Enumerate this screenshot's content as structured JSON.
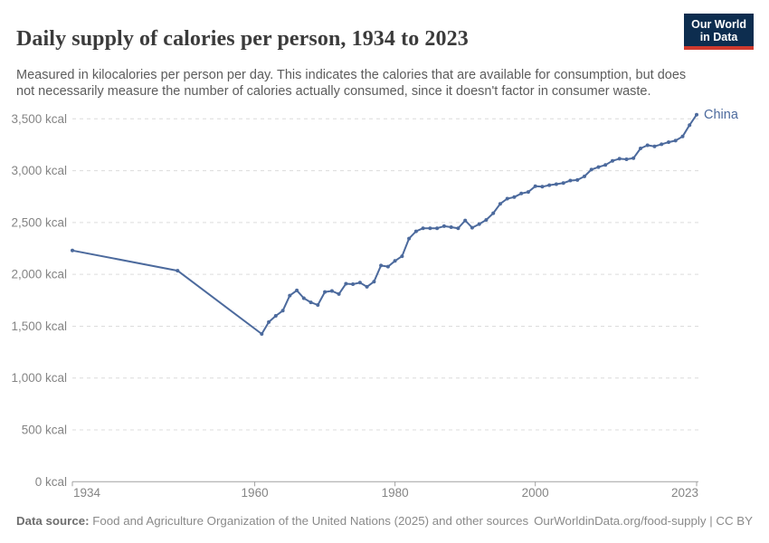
{
  "header": {
    "title": "Daily supply of calories per person, 1934 to 2023",
    "logo": {
      "line1": "Our World",
      "line2": "in Data"
    }
  },
  "subtitle": "Measured in kilocalories per person per day. This indicates the calories that are available for consumption, but does not necessarily measure the number of calories actually consumed, since it doesn't factor in consumer waste.",
  "chart_data": {
    "type": "line",
    "title": "Daily supply of calories per person, 1934 to 2023",
    "entity_label": "China",
    "unit": "kcal",
    "xlim": [
      1934,
      2023
    ],
    "ylim": [
      0,
      3500
    ],
    "grid": "horizontal-dashed",
    "legend_position": "end-of-line-label",
    "x": [
      1934,
      1949,
      1961,
      1962,
      1963,
      1964,
      1965,
      1966,
      1967,
      1968,
      1969,
      1970,
      1971,
      1972,
      1973,
      1974,
      1975,
      1976,
      1977,
      1978,
      1979,
      1980,
      1981,
      1982,
      1983,
      1984,
      1985,
      1986,
      1987,
      1988,
      1989,
      1990,
      1991,
      1992,
      1993,
      1994,
      1995,
      1996,
      1997,
      1998,
      1999,
      2000,
      2001,
      2002,
      2003,
      2004,
      2005,
      2006,
      2007,
      2008,
      2009,
      2010,
      2011,
      2012,
      2013,
      2014,
      2015,
      2016,
      2017,
      2018,
      2019,
      2020,
      2021,
      2022,
      2023
    ],
    "series": [
      {
        "name": "China",
        "color": "#4c6a9d",
        "values": [
          2230,
          2035,
          1425,
          1540,
          1600,
          1650,
          1795,
          1845,
          1770,
          1730,
          1705,
          1830,
          1840,
          1810,
          1910,
          1905,
          1920,
          1880,
          1930,
          2085,
          2075,
          2130,
          2175,
          2345,
          2415,
          2445,
          2445,
          2445,
          2465,
          2455,
          2445,
          2520,
          2450,
          2485,
          2525,
          2590,
          2680,
          2730,
          2745,
          2780,
          2795,
          2850,
          2845,
          2860,
          2870,
          2880,
          2905,
          2910,
          2945,
          3010,
          3035,
          3055,
          3095,
          3115,
          3110,
          3120,
          3215,
          3245,
          3235,
          3255,
          3275,
          3290,
          3330,
          3440,
          3540
        ]
      }
    ],
    "y_ticks": [
      {
        "value": 0,
        "label": "0 kcal"
      },
      {
        "value": 500,
        "label": "500 kcal"
      },
      {
        "value": 1000,
        "label": "1,000 kcal"
      },
      {
        "value": 1500,
        "label": "1,500 kcal"
      },
      {
        "value": 2000,
        "label": "2,000 kcal"
      },
      {
        "value": 2500,
        "label": "2,500 kcal"
      },
      {
        "value": 3000,
        "label": "3,000 kcal"
      },
      {
        "value": 3500,
        "label": "3,500 kcal"
      }
    ],
    "x_ticks": [
      {
        "value": 1934,
        "label": "1934"
      },
      {
        "value": 1960,
        "label": "1960"
      },
      {
        "value": 1980,
        "label": "1980"
      },
      {
        "value": 2000,
        "label": "2000"
      },
      {
        "value": 2023,
        "label": "2023"
      }
    ]
  },
  "footer": {
    "datasource_prefix": "Data source:",
    "datasource_text": " Food and Agriculture Organization of the United Nations (2025) and other sources",
    "link_right": "OurWorldinData.org/food-supply | CC BY"
  },
  "colors": {
    "line": "#4c6a9d",
    "grid": "#dcdcdc",
    "axis": "#a1a1a1",
    "tick_label": "#858585",
    "logo_bg": "#0d2d4f",
    "logo_red": "#cf3a2e"
  }
}
